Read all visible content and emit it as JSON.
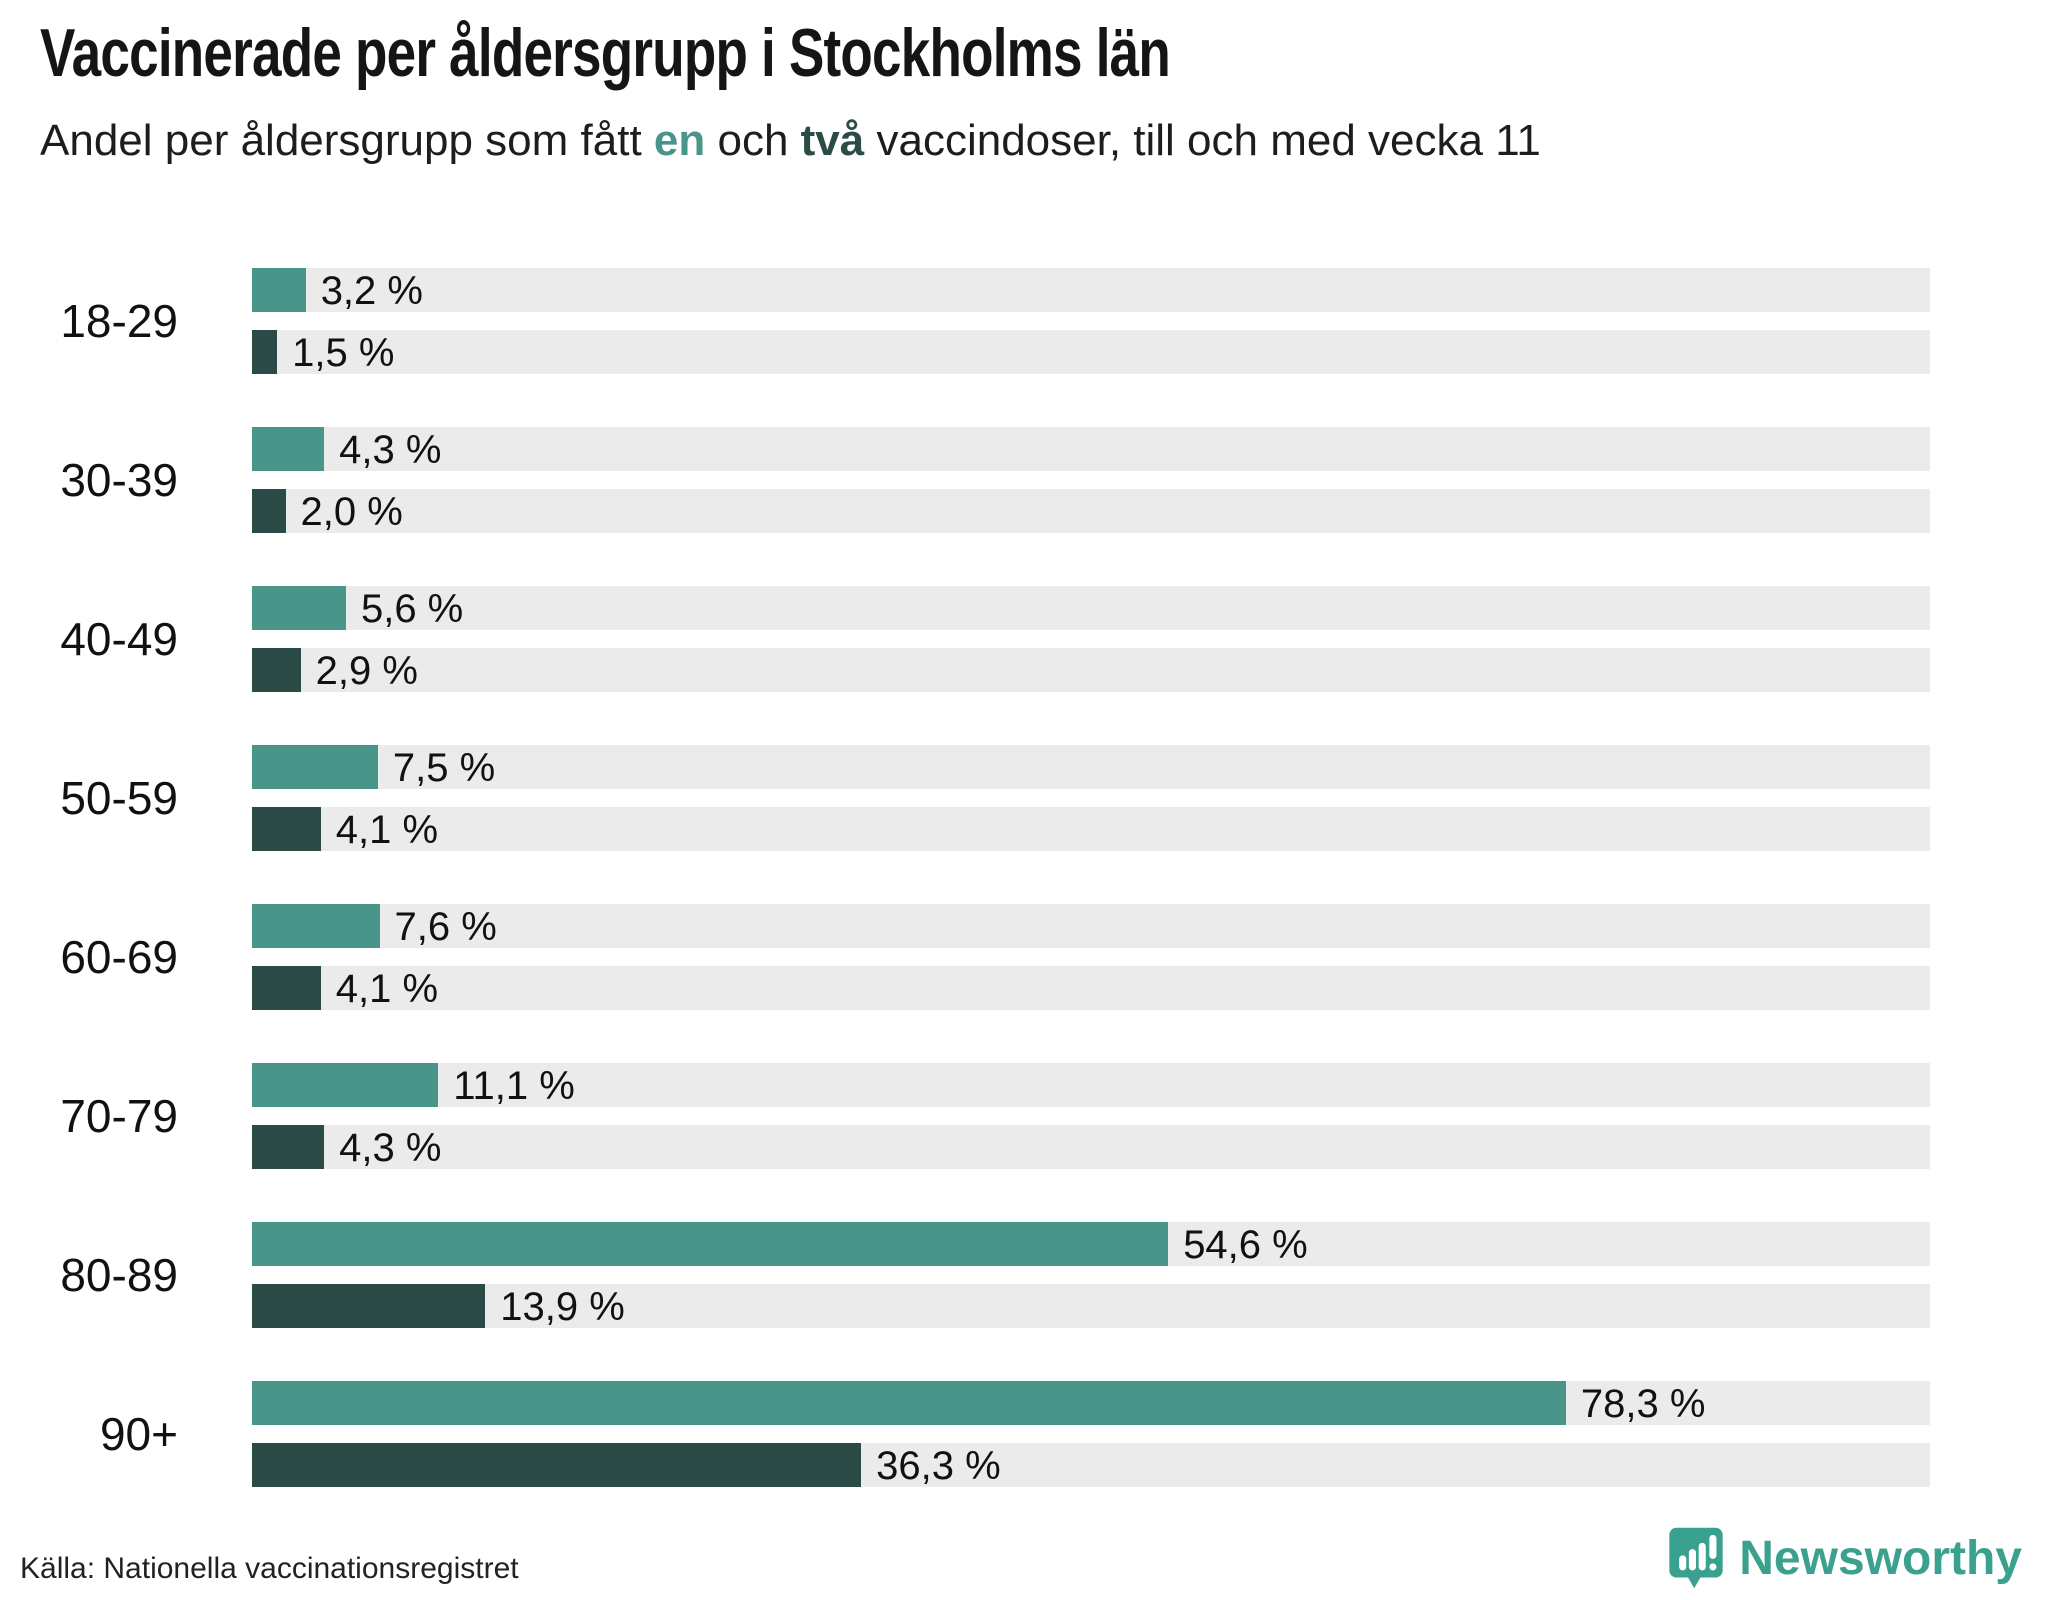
{
  "title": "Vaccinerade per åldersgrupp i Stockholms län",
  "subtitle": {
    "prefix": "Andel per åldersgrupp som fått ",
    "dose1_word": "en",
    "middle": " och ",
    "dose2_word": "två",
    "suffix": " vaccindoser, till och med vecka 11"
  },
  "colors": {
    "dose1": "#4A9589",
    "dose2": "#2B4C46",
    "track": "#EBEBEB",
    "brand": "#3BA18F"
  },
  "chart_data": {
    "type": "bar",
    "orientation": "horizontal",
    "categories": [
      "18-29",
      "30-39",
      "40-49",
      "50-59",
      "60-69",
      "70-79",
      "80-89",
      "90+"
    ],
    "series": [
      {
        "name": "en dos",
        "values": [
          3.2,
          4.3,
          5.6,
          7.5,
          7.6,
          11.1,
          54.6,
          78.3
        ],
        "labels": [
          "3,2 %",
          "4,3 %",
          "5,6 %",
          "7,5 %",
          "7,6 %",
          "11,1 %",
          "54,6 %",
          "78,3 %"
        ]
      },
      {
        "name": "två doser",
        "values": [
          1.5,
          2.0,
          2.9,
          4.1,
          4.1,
          4.3,
          13.9,
          36.3
        ],
        "labels": [
          "1,5 %",
          "2,0 %",
          "2,9 %",
          "4,1 %",
          "4,1 %",
          "4,3 %",
          "13,9 %",
          "36,3 %"
        ]
      }
    ],
    "xlim": [
      0,
      100
    ],
    "grid": false,
    "legend_position": "in-subtitle",
    "value_labels": "outside-right"
  },
  "footer": {
    "source": "Källa: Nationella vaccinationsregistret",
    "brand_name": "Newsworthy"
  }
}
